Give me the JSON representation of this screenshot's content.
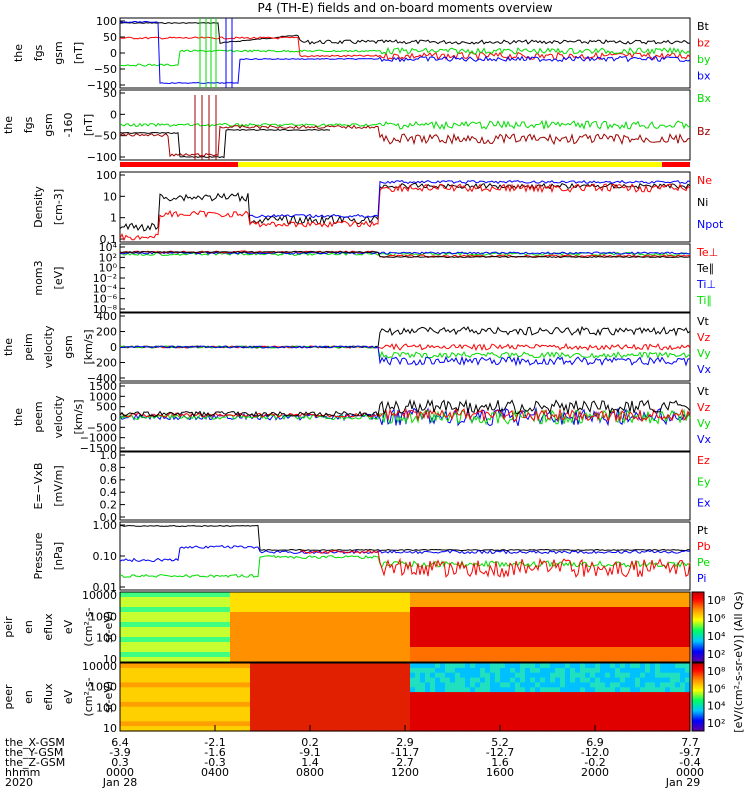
{
  "title": "P4 (TH-E) fields and on-board moments overview",
  "colors": {
    "black": "#000000",
    "red": "#ff0000",
    "green": "#00dd00",
    "blue": "#0000ff",
    "darkred": "#a00000",
    "yellow": "#ffff00"
  },
  "chart_data": {
    "type": "line",
    "x_ticks": [
      "0000",
      "0400",
      "0800",
      "1200",
      "1600",
      "2000",
      "0000"
    ],
    "panels": [
      {
        "ylabel": [
          "the",
          "fgs",
          "gsm",
          "[nT]"
        ],
        "yticks": [
          "100",
          "50",
          "0",
          "−50",
          "−100"
        ],
        "ylim": [
          -100,
          100
        ],
        "legend": [
          {
            "label": "Bt",
            "color": "#000000"
          },
          {
            "label": "bz",
            "color": "#ff0000"
          },
          {
            "label": "by",
            "color": "#00dd00"
          },
          {
            "label": "bx",
            "color": "#0000ff"
          }
        ]
      },
      {
        "ylabel": [
          "the",
          "fgs",
          "gsm",
          "-160",
          "[nT]"
        ],
        "yticks": [
          "50",
          "0",
          "−50",
          "−100"
        ],
        "ylim": [
          -120,
          60
        ],
        "legend": [
          {
            "label": "Bx",
            "color": "#00dd00"
          },
          {
            "label": "Bz",
            "color": "#a00000"
          }
        ]
      },
      {
        "ylabel": [
          "Density",
          "[cm-3]"
        ],
        "yticks": [
          "100",
          "10",
          "1",
          "0.1"
        ],
        "ylim": [
          0.03,
          300
        ],
        "scale": "log",
        "legend": [
          {
            "label": "Ne",
            "color": "#ff0000"
          },
          {
            "label": "Ni",
            "color": "#000000"
          },
          {
            "label": "Npot",
            "color": "#0000ff"
          }
        ]
      },
      {
        "ylabel": [
          "mom3",
          "[eV]"
        ],
        "yticks": [
          "10⁴",
          "10²",
          "10⁰",
          "10⁻²",
          "10⁻⁴",
          "10⁻⁶",
          "10⁻⁸"
        ],
        "ylim": [
          1e-09,
          10000.0
        ],
        "scale": "log",
        "legend": [
          {
            "label": "Te⊥",
            "color": "#ff0000"
          },
          {
            "label": "Te∥",
            "color": "#000000"
          },
          {
            "label": "Ti⊥",
            "color": "#0000ff"
          },
          {
            "label": "Ti∥",
            "color": "#00dd00"
          }
        ]
      },
      {
        "ylabel": [
          "the",
          "peim",
          "velocity",
          "gsm",
          "[km/s]"
        ],
        "yticks": [
          "400",
          "200",
          "0",
          "−200",
          "−400"
        ],
        "ylim": [
          -400,
          400
        ],
        "legend": [
          {
            "label": "Vt",
            "color": "#000000"
          },
          {
            "label": "Vz",
            "color": "#ff0000"
          },
          {
            "label": "Vy",
            "color": "#00dd00"
          },
          {
            "label": "Vx",
            "color": "#0000ff"
          }
        ]
      },
      {
        "ylabel": [
          "the",
          "peem",
          "velocity",
          "[km/s]"
        ],
        "yticks": [
          "1500",
          "1000",
          "500",
          "0",
          "−500",
          "−1000",
          "−1500"
        ],
        "ylim": [
          -1500,
          1500
        ],
        "legend": [
          {
            "label": "Vt",
            "color": "#000000"
          },
          {
            "label": "Vz",
            "color": "#ff0000"
          },
          {
            "label": "Vy",
            "color": "#00dd00"
          },
          {
            "label": "Vx",
            "color": "#0000ff"
          }
        ]
      },
      {
        "ylabel": [
          "E=−VxB",
          "[mV/m]"
        ],
        "yticks": [
          "1.0",
          "0.8",
          "0.6",
          "0.4",
          "0.2",
          "0.0"
        ],
        "ylim": [
          0,
          1
        ],
        "legend": [
          {
            "label": "Ez",
            "color": "#ff0000"
          },
          {
            "label": "Ey",
            "color": "#00dd00"
          },
          {
            "label": "Ex",
            "color": "#0000ff"
          }
        ]
      },
      {
        "ylabel": [
          "Pressure",
          "[nPa]"
        ],
        "yticks": [
          "1.00",
          "0.10",
          "0.01"
        ],
        "ylim": [
          0.002,
          3
        ],
        "scale": "log",
        "legend": [
          {
            "label": "Pt",
            "color": "#000000"
          },
          {
            "label": "Pb",
            "color": "#ff0000"
          },
          {
            "label": "Pe",
            "color": "#00dd00"
          },
          {
            "label": "Pi",
            "color": "#0000ff"
          }
        ]
      },
      {
        "ylabel": [
          "the",
          "peir",
          "en",
          "eflux",
          "eV",
          "(cm²-s-",
          "sr-eV)"
        ],
        "yticks": [
          "10000",
          "1000",
          "100",
          "10"
        ],
        "type": "heatmap"
      },
      {
        "ylabel": [
          "the",
          "peer",
          "en",
          "eflux",
          "eV",
          "(cm²-s-",
          "sr-eV)"
        ],
        "yticks": [
          "10000",
          "1000",
          "100",
          "10"
        ],
        "type": "heatmap"
      }
    ],
    "colorbar": {
      "label": "[eV/(cm²-s-sr-eV)] (All Qs)",
      "ticks1": [
        "10⁸",
        "10⁶",
        "10⁴",
        "10²"
      ],
      "ticks2": [
        "10⁸",
        "10⁶",
        "10⁴",
        "10²"
      ]
    },
    "footer": {
      "rows": [
        {
          "label": "the_X-GSM",
          "values": [
            "6.4",
            "-2.1",
            "0.2",
            "2.9",
            "5.2",
            "6.9",
            "7.7"
          ]
        },
        {
          "label": "the_Y-GSM",
          "values": [
            "-3.9",
            "-1.6",
            "-9.1",
            "-11.7",
            "-12.7",
            "-12.0",
            "-9.7"
          ]
        },
        {
          "label": "the_Z-GSM",
          "values": [
            "0.3",
            "-0.3",
            "1.4",
            "2.7",
            "1.6",
            "-0.2",
            "-0.4"
          ]
        },
        {
          "label": "hhmm",
          "values": [
            "0000",
            "0400",
            "0800",
            "1200",
            "1600",
            "2000",
            "0000"
          ]
        }
      ],
      "year": "2020",
      "start_date": "Jan 28",
      "end_date": "Jan 29"
    }
  }
}
